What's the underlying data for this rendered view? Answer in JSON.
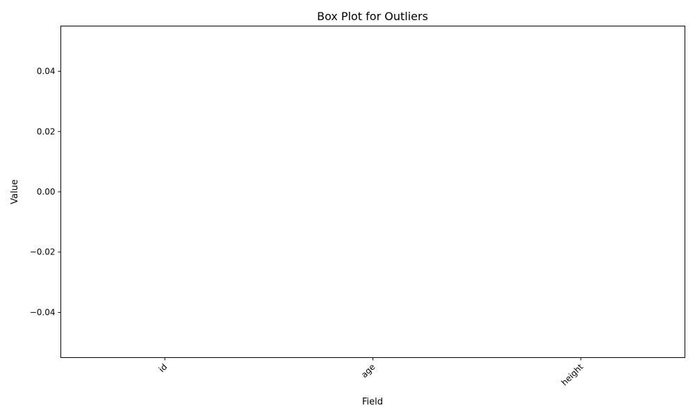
{
  "chart_data": {
    "type": "box",
    "title": "Box Plot for Outliers",
    "xlabel": "Field",
    "ylabel": "Value",
    "categories": [
      "id",
      "age",
      "height"
    ],
    "series": [
      {
        "category": "id",
        "values": []
      },
      {
        "category": "age",
        "values": []
      },
      {
        "category": "height",
        "values": []
      }
    ],
    "ylim": [
      -0.055,
      0.055
    ],
    "yticks": [
      -0.04,
      -0.02,
      0.0,
      0.02,
      0.04
    ],
    "ytick_labels": [
      "−0.04",
      "−0.02",
      "0.00",
      "0.02",
      "0.04"
    ],
    "xtick_rotation_deg": 45,
    "grid": false,
    "legend": "none"
  }
}
